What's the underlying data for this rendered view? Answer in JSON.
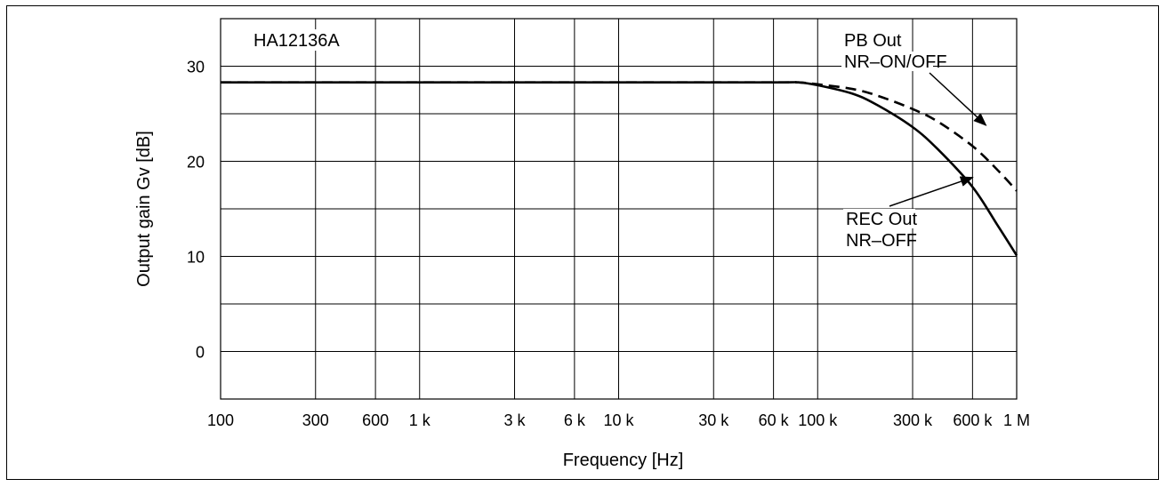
{
  "chart_data": {
    "type": "line",
    "chart_label": "HA12136A",
    "xlabel": "Frequency [Hz]",
    "ylabel": "Output gain Gv [dB]",
    "xscale": "log",
    "xlim": [
      100,
      1000000
    ],
    "ylim": [
      -5,
      35
    ],
    "grid": true,
    "x_ticks": [
      {
        "value": 100,
        "label": "100"
      },
      {
        "value": 300,
        "label": "300"
      },
      {
        "value": 600,
        "label": "600"
      },
      {
        "value": 1000,
        "label": "1 k"
      },
      {
        "value": 3000,
        "label": "3 k"
      },
      {
        "value": 6000,
        "label": "6 k"
      },
      {
        "value": 10000,
        "label": "10 k"
      },
      {
        "value": 30000,
        "label": "30 k"
      },
      {
        "value": 60000,
        "label": "60 k"
      },
      {
        "value": 100000,
        "label": "100 k"
      },
      {
        "value": 300000,
        "label": "300 k"
      },
      {
        "value": 600000,
        "label": "600 k"
      },
      {
        "value": 1000000,
        "label": "1 M"
      }
    ],
    "y_ticks": [
      {
        "value": 30,
        "label": "30"
      },
      {
        "value": 20,
        "label": "20"
      },
      {
        "value": 10,
        "label": "10"
      },
      {
        "value": 0,
        "label": "0"
      }
    ],
    "y_gridlines": [
      -5,
      0,
      5,
      10,
      15,
      20,
      25,
      30,
      35
    ],
    "series": [
      {
        "line_style": "dashed",
        "color": "#000000",
        "x": [
          100,
          1000,
          10000,
          60000,
          80000,
          100000,
          150000,
          200000,
          300000,
          400000,
          600000,
          800000,
          1000000
        ],
        "y": [
          28.3,
          28.3,
          28.3,
          28.3,
          28.3,
          28.1,
          27.6,
          26.9,
          25.5,
          24.2,
          21.6,
          19.1,
          16.9
        ]
      },
      {
        "line_style": "solid",
        "color": "#000000",
        "x": [
          100,
          1000,
          10000,
          60000,
          80000,
          100000,
          150000,
          200000,
          300000,
          400000,
          600000,
          800000,
          1000000
        ],
        "y": [
          28.3,
          28.3,
          28.3,
          28.3,
          28.3,
          28.0,
          27.1,
          25.9,
          23.6,
          21.3,
          17.3,
          13.3,
          10.1
        ]
      }
    ],
    "annotations": [
      {
        "lines": [
          "PB Out",
          "NR–ON/OFF"
        ],
        "target_x": 700000,
        "target_y": 23.8
      },
      {
        "lines": [
          "REC Out",
          "NR–OFF"
        ],
        "target_x": 600000,
        "target_y": 18.3
      }
    ]
  }
}
